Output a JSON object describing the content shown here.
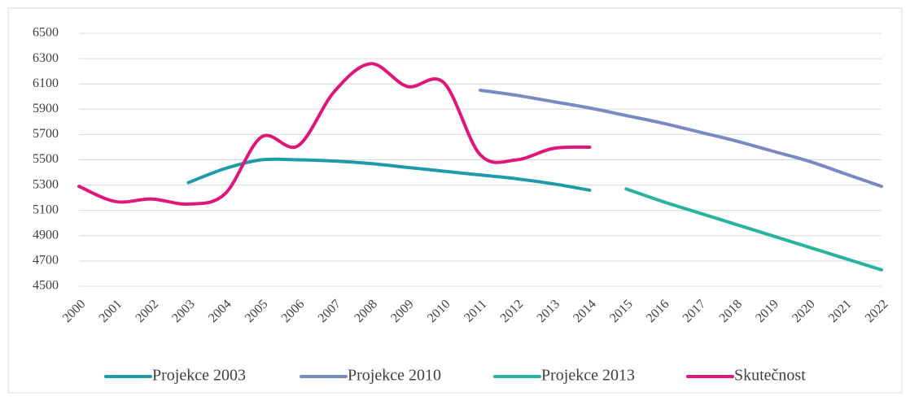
{
  "chart_data": {
    "type": "line",
    "categories": [
      "2000",
      "2001",
      "2002",
      "2003",
      "2004",
      "2005",
      "2006",
      "2007",
      "2008",
      "2009",
      "2010",
      "2011",
      "2012",
      "2013",
      "2014",
      "2015",
      "2016",
      "2017",
      "2018",
      "2019",
      "2020",
      "2021",
      "2022"
    ],
    "series": [
      {
        "name": "Projekce 2003",
        "color": "#1e9aa9",
        "values": [
          null,
          null,
          null,
          5320,
          5430,
          5500,
          5500,
          5490,
          5470,
          5440,
          5410,
          5380,
          5350,
          5310,
          5260,
          null,
          null,
          null,
          null,
          null,
          null,
          null,
          null
        ]
      },
      {
        "name": "Projekce 2010",
        "color": "#7889c4",
        "values": [
          null,
          null,
          null,
          null,
          null,
          null,
          null,
          null,
          null,
          null,
          null,
          6050,
          6010,
          5960,
          5910,
          5850,
          5790,
          5720,
          5650,
          5570,
          5490,
          5390,
          5290
        ]
      },
      {
        "name": "Projekce 2013",
        "color": "#27b39e",
        "values": [
          null,
          null,
          null,
          null,
          null,
          null,
          null,
          null,
          null,
          null,
          null,
          null,
          null,
          null,
          null,
          5270,
          5170,
          5080,
          4990,
          4900,
          4810,
          4720,
          4630
        ]
      },
      {
        "name": "Skutečnost",
        "color": "#e0167a",
        "values": [
          5290,
          5170,
          5190,
          5150,
          5230,
          5680,
          5610,
          6040,
          6260,
          6080,
          6110,
          5540,
          5500,
          5590,
          5600,
          null,
          null,
          null,
          null,
          null,
          null,
          null,
          null
        ]
      }
    ],
    "ylim": [
      4500,
      6500
    ],
    "yticks": [
      4500,
      4700,
      4900,
      5100,
      5300,
      5500,
      5700,
      5900,
      6100,
      6300,
      6500
    ],
    "grid": true,
    "legend": "bottom"
  }
}
